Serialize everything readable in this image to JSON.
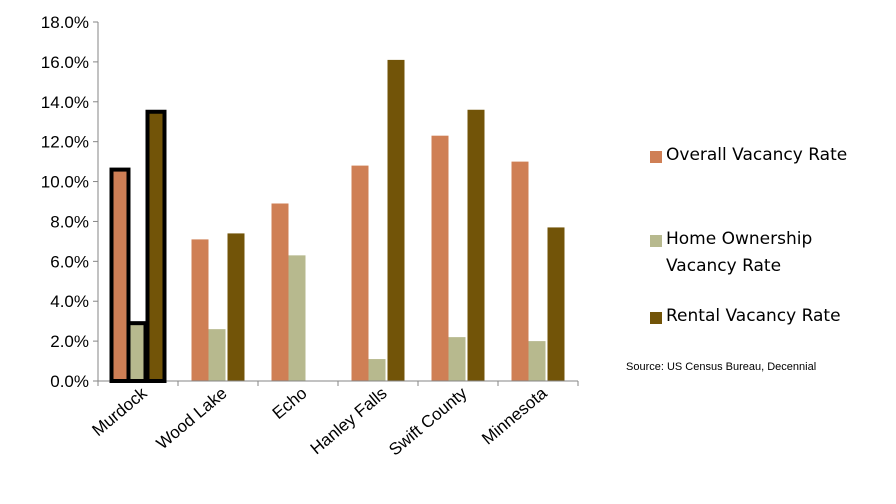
{
  "chart_data": {
    "type": "bar",
    "categories": [
      "Murdock",
      "Wood Lake",
      "Echo",
      "Hanley Falls",
      "Swift County",
      "Minnesota"
    ],
    "series": [
      {
        "name": "Overall Vacancy Rate",
        "color": "#CF7F55",
        "values": [
          10.6,
          7.1,
          8.9,
          10.8,
          12.3,
          11.0
        ]
      },
      {
        "name": "Home Ownership Vacancy Rate",
        "color": "#B7B98E",
        "values": [
          2.9,
          2.6,
          6.3,
          1.1,
          2.2,
          2.0
        ]
      },
      {
        "name": "Rental Vacancy Rate",
        "color": "#725408",
        "values": [
          13.5,
          7.4,
          0.0,
          16.1,
          13.6,
          7.7
        ]
      }
    ],
    "ylim": [
      0,
      18
    ],
    "y_ticks": [
      "0.0%",
      "2.0%",
      "4.0%",
      "6.0%",
      "8.0%",
      "10.0%",
      "12.0%",
      "14.0%",
      "16.0%",
      "18.0%"
    ],
    "grid": false,
    "legend_position": "right",
    "highlighted_category": "Murdock",
    "highlight_color": "#000000",
    "source_note": "Source: US Census Bureau, Decennial"
  }
}
